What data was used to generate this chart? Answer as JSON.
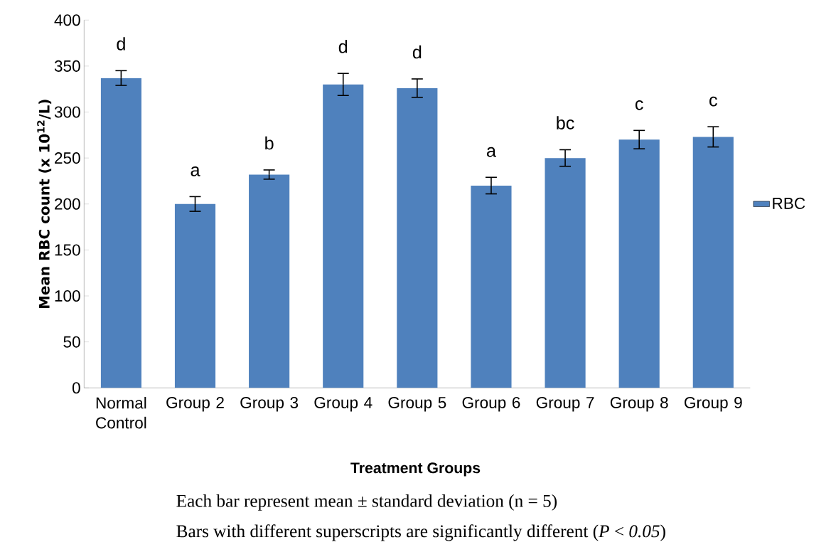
{
  "chart_data": {
    "type": "bar",
    "xlabel": "Treatment Groups",
    "ylabel": "Mean RBC count (x 10$^{12}$/L)",
    "categories": [
      "Normal Control",
      "Group 2",
      "Group 3",
      "Group 4",
      "Group 5",
      "Group 6",
      "Group 7",
      "Group 8",
      "Group 9"
    ],
    "series": [
      {
        "name": "RBC",
        "color": "#4f81bd",
        "values": [
          337,
          200,
          232,
          330,
          326,
          220,
          250,
          270,
          273
        ],
        "errors": [
          8,
          8,
          5,
          12,
          10,
          9,
          9,
          10,
          11
        ]
      }
    ],
    "ylim": [
      0,
      400
    ],
    "yticks": [
      0,
      50,
      100,
      150,
      200,
      250,
      300,
      350,
      400
    ],
    "legend": "right",
    "annotations": [
      {
        "text": "d",
        "x": "Normal Control",
        "y": 345
      },
      {
        "text": "a",
        "x": "Group 2",
        "y": 208
      },
      {
        "text": "b",
        "x": "Group 3",
        "y": 237
      },
      {
        "text": "d",
        "x": "Group 4",
        "y": 342
      },
      {
        "text": "d",
        "x": "Group 5",
        "y": 336
      },
      {
        "text": "a",
        "x": "Group 6",
        "y": 229
      },
      {
        "text": "bc",
        "x": "Group 7",
        "y": 259
      },
      {
        "text": "c",
        "x": "Group 8",
        "y": 280
      },
      {
        "text": "c",
        "x": "Group 9",
        "y": 284
      },
      "Each bar represent mean ± standard deviation (n = 5)",
      "Bars with different superscripts are significantly different (*P* < *0.05*)"
    ]
  }
}
